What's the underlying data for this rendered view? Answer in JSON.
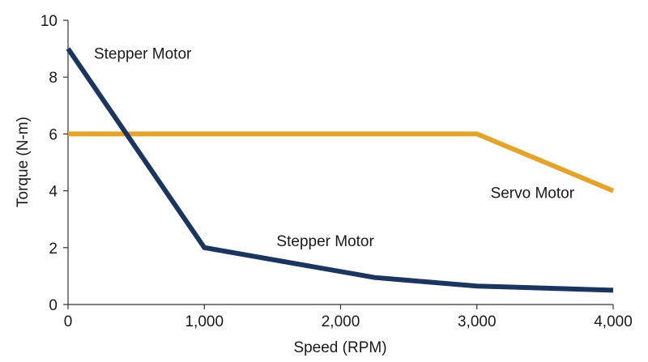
{
  "chart_data": {
    "type": "line",
    "title": "",
    "xlabel": "Speed (RPM)",
    "ylabel": "Torque (N-m)",
    "xlim": [
      0,
      4000
    ],
    "ylim": [
      0,
      10
    ],
    "xticks": [
      0,
      1000,
      2000,
      3000,
      4000
    ],
    "xtick_labels": [
      "0",
      "1,000",
      "2,000",
      "3,000",
      "4,000"
    ],
    "yticks": [
      0,
      2,
      4,
      6,
      8,
      10
    ],
    "ytick_labels": [
      "0",
      "2",
      "4",
      "6",
      "8",
      "10"
    ],
    "grid": false,
    "legend": "none",
    "series": [
      {
        "color": "#1b355e",
        "x": [
          0,
          1000,
          2250,
          3000,
          4000
        ],
        "y": [
          9.0,
          2.0,
          0.95,
          0.65,
          0.5
        ]
      },
      {
        "color": "#e2a42c",
        "x": [
          0,
          3000,
          4000
        ],
        "y": [
          6.0,
          6.0,
          4.0
        ]
      }
    ],
    "annotations": [
      {
        "text": "Stepper Motor",
        "x": 190,
        "y": 8.65
      },
      {
        "text": "Stepper Motor",
        "x": 1530,
        "y": 2.05
      },
      {
        "text": "Servo Motor",
        "x": 3100,
        "y": 3.75
      }
    ]
  }
}
